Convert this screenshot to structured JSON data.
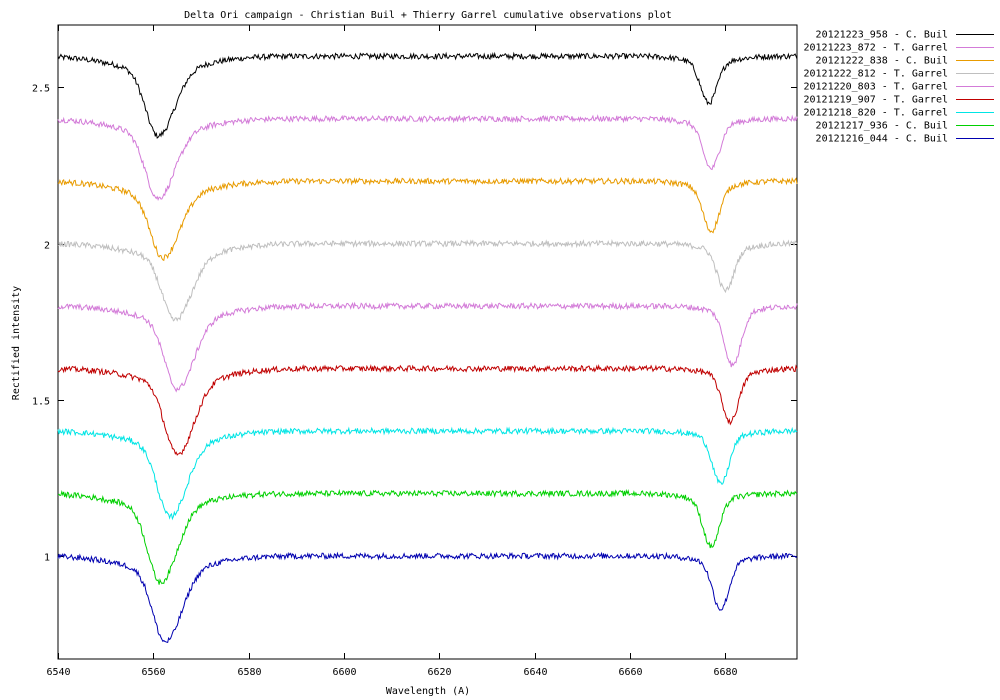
{
  "chart_data": {
    "type": "line",
    "title": "Delta Ori campaign - Christian Buil + Thierry Garrel cumulative observations plot",
    "xlabel": "Wavelength (A)",
    "ylabel": "Rectified intensity",
    "xlim": [
      6540,
      6695
    ],
    "ylim": [
      0.67,
      2.7
    ],
    "x_ticks": [
      6540,
      6560,
      6580,
      6600,
      6620,
      6640,
      6660,
      6680
    ],
    "y_ticks": [
      1,
      1.5,
      2,
      2.5
    ],
    "legend_position": "outside-top-right",
    "series": [
      {
        "name": "20121223_958 - C. Buil",
        "color": "#000000",
        "offset": 1.6,
        "line1_center": 6561.0,
        "line1_depth": 0.21,
        "line2_center": 6676.5,
        "line2_depth": 0.13
      },
      {
        "name": "20121223_872 - T. Garrel",
        "color": "#d37bd8",
        "offset": 1.4,
        "line1_center": 6561.0,
        "line1_depth": 0.21,
        "line2_center": 6677.0,
        "line2_depth": 0.14
      },
      {
        "name": "20121222_838 - C. Buil",
        "color": "#e89b00",
        "offset": 1.2,
        "line1_center": 6562.0,
        "line1_depth": 0.2,
        "line2_center": 6677.0,
        "line2_depth": 0.14
      },
      {
        "name": "20121222_812 - T. Garrel",
        "color": "#bfbfbf",
        "offset": 1.0,
        "line1_center": 6564.5,
        "line1_depth": 0.2,
        "line2_center": 6680.0,
        "line2_depth": 0.13
      },
      {
        "name": "20121220_803 - T. Garrel",
        "color": "#d37bd8",
        "offset": 0.8,
        "line1_center": 6565.0,
        "line1_depth": 0.22,
        "line2_center": 6681.5,
        "line2_depth": 0.17
      },
      {
        "name": "20121219_907 - T. Garrel",
        "color": "#c00000",
        "offset": 0.6,
        "line1_center": 6565.0,
        "line1_depth": 0.23,
        "line2_center": 6681.0,
        "line2_depth": 0.15
      },
      {
        "name": "20121218_820 - T. Garrel",
        "color": "#00e5e5",
        "offset": 0.4,
        "line1_center": 6563.5,
        "line1_depth": 0.23,
        "line2_center": 6679.0,
        "line2_depth": 0.15
      },
      {
        "name": "20121217_936 - C. Buil",
        "color": "#00d000",
        "offset": 0.2,
        "line1_center": 6561.5,
        "line1_depth": 0.24,
        "line2_center": 6677.0,
        "line2_depth": 0.15
      },
      {
        "name": "20121216_044 - C. Buil",
        "color": "#0000b0",
        "offset": 0.0,
        "line1_center": 6562.5,
        "line1_depth": 0.23,
        "line2_center": 6679.0,
        "line2_depth": 0.15
      }
    ]
  }
}
